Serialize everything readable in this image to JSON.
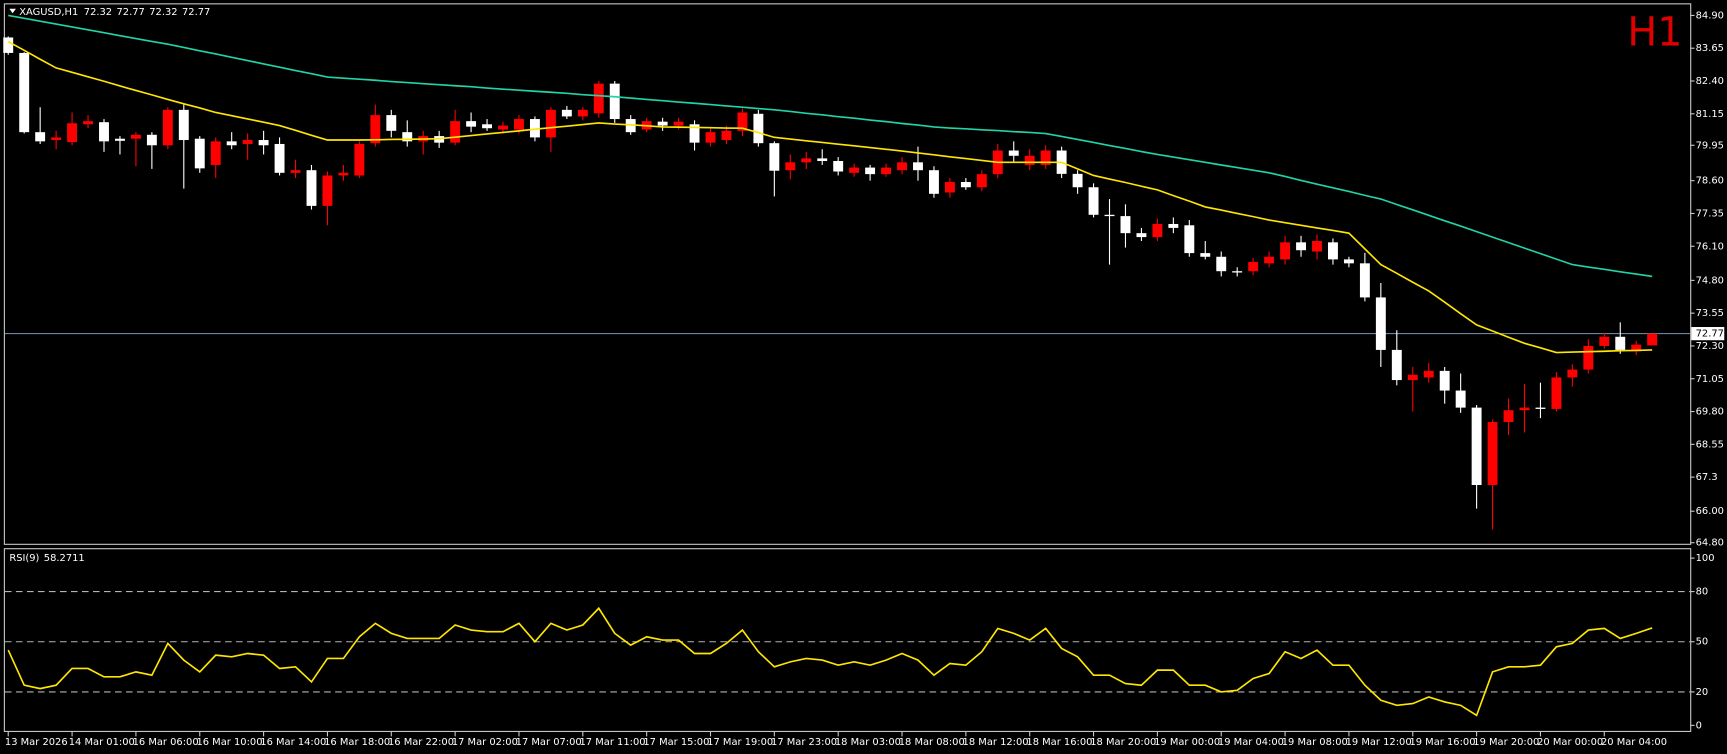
{
  "chart_data": [
    {
      "type": "candlestick",
      "title": "XAGUSD,H1",
      "readout": [
        72.32,
        72.77,
        72.32,
        72.77
      ],
      "annotation": "H1",
      "annotation_color": "#e00000",
      "current_price": 72.77,
      "up_color": "#ff0000",
      "down_color": "#ffffff",
      "categories": [
        "13 Mar 2026",
        null,
        null,
        null,
        "14 Mar 01:00",
        null,
        null,
        null,
        "16 Mar 06:00",
        null,
        null,
        null,
        "16 Mar 10:00",
        null,
        null,
        null,
        "16 Mar 14:00",
        null,
        null,
        null,
        "16 Mar 18:00",
        null,
        null,
        null,
        "16 Mar 22:00",
        null,
        null,
        null,
        "17 Mar 02:00",
        null,
        null,
        null,
        "17 Mar 07:00",
        null,
        null,
        null,
        "17 Mar 11:00",
        null,
        null,
        null,
        "17 Mar 15:00",
        null,
        null,
        null,
        "17 Mar 19:00",
        null,
        null,
        null,
        "17 Mar 23:00",
        null,
        null,
        null,
        "18 Mar 03:00",
        null,
        null,
        null,
        "18 Mar 08:00",
        null,
        null,
        null,
        "18 Mar 12:00",
        null,
        null,
        null,
        "18 Mar 16:00",
        null,
        null,
        null,
        "18 Mar 20:00",
        null,
        null,
        null,
        "19 Mar 00:00",
        null,
        null,
        null,
        "19 Mar 04:00",
        null,
        null,
        null,
        "19 Mar 08:00",
        null,
        null,
        null,
        "19 Mar 12:00",
        null,
        null,
        null,
        "19 Mar 16:00",
        null,
        null,
        null,
        "19 Mar 20:00",
        null,
        null,
        null,
        "20 Mar 00:00",
        null,
        null,
        null,
        "20 Mar 04:00",
        null,
        null,
        null
      ],
      "open": [
        84.06,
        83.47,
        80.45,
        80.15,
        80.07,
        80.75,
        80.83,
        80.2,
        80.2,
        80.35,
        79.95,
        81.3,
        80.2,
        79.2,
        80.1,
        80.0,
        80.15,
        80.0,
        78.9,
        79.0,
        77.64,
        78.8,
        78.8,
        80.03,
        81.1,
        80.45,
        80.1,
        80.3,
        80.05,
        80.87,
        80.75,
        80.55,
        80.55,
        80.95,
        80.25,
        81.3,
        81.05,
        81.17,
        82.3,
        80.95,
        80.55,
        80.85,
        80.7,
        80.75,
        80.05,
        80.15,
        80.5,
        81.15,
        80.03,
        79.0,
        79.3,
        79.45,
        79.35,
        78.9,
        79.1,
        78.85,
        79.0,
        79.3,
        79.0,
        78.15,
        78.55,
        78.35,
        78.85,
        79.75,
        79.2,
        79.2,
        79.75,
        78.86,
        78.35,
        77.3,
        77.25,
        76.6,
        76.45,
        76.95,
        76.9,
        75.84,
        75.7,
        75.15,
        75.15,
        75.45,
        75.6,
        76.25,
        75.9,
        76.25,
        75.6,
        75.45,
        74.15,
        72.15,
        71.0,
        71.1,
        71.35,
        70.6,
        69.95,
        67.0,
        69.4,
        69.85,
        69.95,
        69.9,
        71.1,
        71.4,
        72.3,
        72.65,
        72.1,
        72.32
      ],
      "high": [
        84.1,
        83.5,
        81.4,
        80.5,
        81.2,
        81.1,
        80.95,
        80.3,
        80.45,
        80.45,
        81.4,
        81.5,
        80.3,
        80.25,
        80.45,
        80.4,
        80.5,
        80.25,
        79.4,
        79.2,
        78.95,
        79.2,
        80.1,
        81.5,
        81.3,
        80.9,
        80.5,
        80.5,
        81.3,
        81.2,
        80.95,
        80.85,
        81.1,
        81.05,
        81.4,
        81.45,
        81.4,
        82.4,
        82.4,
        81.1,
        81.0,
        81.0,
        81.0,
        80.9,
        80.6,
        80.7,
        81.35,
        81.3,
        80.1,
        79.6,
        79.7,
        79.8,
        79.5,
        79.25,
        79.2,
        79.25,
        79.5,
        79.9,
        79.15,
        78.7,
        78.7,
        79.0,
        80.0,
        80.1,
        79.8,
        79.95,
        79.9,
        79.0,
        78.5,
        77.9,
        77.7,
        76.8,
        77.15,
        77.2,
        77.1,
        76.3,
        75.9,
        75.3,
        75.65,
        75.9,
        76.5,
        76.5,
        76.55,
        76.4,
        75.7,
        75.85,
        74.7,
        72.9,
        71.5,
        71.65,
        71.5,
        71.25,
        70.05,
        69.5,
        70.3,
        70.85,
        70.9,
        71.3,
        71.6,
        72.55,
        72.8,
        73.2,
        72.5,
        72.77
      ],
      "low": [
        83.4,
        80.4,
        80.0,
        79.8,
        79.95,
        80.6,
        79.7,
        79.6,
        79.15,
        79.05,
        79.8,
        78.3,
        78.9,
        78.7,
        79.8,
        79.4,
        79.6,
        78.8,
        78.7,
        77.5,
        76.9,
        78.6,
        78.7,
        79.9,
        80.25,
        79.9,
        79.6,
        79.85,
        79.95,
        80.45,
        80.5,
        80.4,
        80.4,
        80.1,
        79.7,
        80.95,
        80.9,
        81.0,
        80.8,
        80.35,
        80.45,
        80.5,
        80.55,
        79.75,
        79.9,
        80.0,
        80.3,
        79.9,
        78.0,
        78.65,
        79.05,
        79.2,
        78.8,
        78.75,
        78.6,
        78.75,
        78.85,
        78.6,
        77.95,
        77.95,
        78.25,
        78.2,
        78.7,
        79.3,
        79.0,
        79.05,
        78.7,
        78.1,
        77.2,
        75.4,
        76.05,
        76.3,
        76.3,
        76.6,
        75.7,
        75.6,
        74.95,
        74.95,
        75.0,
        75.3,
        75.4,
        75.7,
        75.6,
        75.4,
        75.3,
        74.0,
        71.5,
        70.8,
        69.8,
        70.9,
        70.1,
        69.75,
        66.1,
        65.3,
        68.9,
        69.0,
        69.55,
        69.8,
        70.75,
        71.25,
        72.2,
        72.0,
        71.95,
        72.32
      ],
      "close": [
        83.47,
        80.45,
        80.1,
        80.25,
        80.79,
        80.87,
        80.1,
        80.12,
        80.35,
        79.95,
        81.3,
        80.15,
        79.07,
        80.1,
        79.95,
        80.15,
        79.95,
        78.9,
        79.0,
        77.64,
        78.8,
        78.9,
        80.0,
        81.1,
        80.5,
        80.1,
        80.3,
        80.05,
        80.87,
        80.66,
        80.6,
        80.7,
        80.95,
        80.25,
        81.3,
        81.05,
        81.3,
        82.3,
        80.95,
        80.45,
        80.87,
        80.7,
        80.85,
        80.05,
        80.45,
        80.5,
        81.2,
        80.03,
        78.98,
        79.3,
        79.45,
        79.35,
        78.95,
        79.1,
        78.85,
        79.1,
        79.3,
        79.0,
        78.1,
        78.55,
        78.35,
        78.85,
        79.75,
        79.55,
        79.55,
        79.75,
        78.86,
        78.35,
        77.3,
        77.25,
        76.6,
        76.45,
        76.95,
        76.8,
        75.84,
        75.7,
        75.15,
        75.1,
        75.5,
        75.7,
        76.25,
        75.95,
        76.3,
        75.6,
        75.45,
        74.15,
        72.15,
        71.0,
        71.2,
        71.35,
        70.6,
        69.95,
        67.0,
        69.4,
        69.85,
        69.95,
        69.9,
        71.1,
        71.4,
        72.3,
        72.65,
        72.15,
        72.35,
        72.77
      ],
      "series": [
        {
          "color": "#ffe600",
          "values": [
            83.9,
            83.57,
            83.23,
            82.9,
            82.73,
            82.56,
            82.39,
            82.21,
            82.04,
            81.87,
            81.7,
            81.53,
            81.37,
            81.2,
            81.08,
            80.95,
            80.83,
            80.7,
            80.52,
            80.33,
            80.15,
            80.15,
            80.15,
            80.16,
            80.17,
            80.18,
            80.19,
            80.2,
            80.26,
            80.32,
            80.38,
            80.44,
            80.5,
            80.56,
            80.62,
            80.68,
            80.74,
            80.8,
            80.76,
            80.73,
            80.69,
            80.65,
            80.64,
            80.63,
            80.62,
            80.61,
            80.6,
            80.43,
            80.25,
            80.19,
            80.12,
            80.06,
            79.99,
            79.93,
            79.86,
            79.8,
            79.73,
            79.66,
            79.59,
            79.51,
            79.44,
            79.37,
            79.3,
            79.3,
            79.3,
            79.3,
            79.3,
            79.05,
            78.8,
            78.66,
            78.53,
            78.39,
            78.25,
            78.03,
            77.82,
            77.6,
            77.48,
            77.35,
            77.23,
            77.1,
            77.0,
            76.9,
            76.8,
            76.7,
            76.6,
            76.0,
            75.4,
            75.07,
            74.73,
            74.4,
            73.97,
            73.53,
            73.1,
            72.87,
            72.63,
            72.4,
            72.23,
            72.05,
            72.07,
            72.08,
            72.1,
            72.12,
            72.13,
            72.15
          ]
        },
        {
          "color": "#22d3a5",
          "values": [
            84.9,
            84.79,
            84.68,
            84.57,
            84.46,
            84.35,
            84.24,
            84.13,
            84.02,
            83.91,
            83.8,
            83.68,
            83.55,
            83.43,
            83.3,
            83.18,
            83.05,
            82.93,
            82.8,
            82.68,
            82.55,
            82.51,
            82.47,
            82.43,
            82.38,
            82.34,
            82.3,
            82.26,
            82.22,
            82.18,
            82.13,
            82.09,
            82.05,
            82.01,
            81.97,
            81.93,
            81.88,
            81.84,
            81.8,
            81.75,
            81.7,
            81.65,
            81.6,
            81.55,
            81.5,
            81.45,
            81.4,
            81.35,
            81.3,
            81.24,
            81.17,
            81.11,
            81.04,
            80.98,
            80.91,
            80.85,
            80.78,
            80.72,
            80.65,
            80.61,
            80.58,
            80.54,
            80.51,
            80.47,
            80.44,
            80.4,
            80.29,
            80.17,
            80.06,
            79.94,
            79.83,
            79.71,
            79.6,
            79.5,
            79.4,
            79.3,
            79.2,
            79.1,
            79.0,
            78.9,
            78.76,
            78.61,
            78.47,
            78.33,
            78.19,
            78.04,
            77.9,
            77.69,
            77.49,
            77.28,
            77.07,
            76.87,
            76.66,
            76.45,
            76.24,
            76.03,
            75.82,
            75.61,
            75.4,
            75.31,
            75.22,
            75.13,
            75.04,
            74.95
          ]
        }
      ],
      "ylim": [
        64.76,
        85.32
      ],
      "yticks": [
        {
          "value": 84.9,
          "label": "84.90"
        },
        83.65,
        {
          "value": 82.4,
          "label": "82.40"
        },
        81.15,
        79.95,
        {
          "value": 78.6,
          "label": "78.60"
        },
        77.35,
        {
          "value": 76.1,
          "label": "76.10"
        },
        {
          "value": 74.8,
          "label": "74.80"
        },
        73.55,
        {
          "value": 72.3,
          "label": "72.30"
        },
        71.05,
        {
          "value": 69.8,
          "label": "69.80"
        },
        68.55,
        67.3,
        {
          "value": 66.0,
          "label": "66.00"
        },
        {
          "value": 64.8,
          "label": "64.80"
        }
      ]
    },
    {
      "type": "line",
      "title": "RSI(9)",
      "readout": 58.2711,
      "color": "#ffe600",
      "values": [
        45,
        24,
        22,
        24,
        34,
        34,
        29,
        29,
        32,
        30,
        49,
        39,
        32,
        42,
        41,
        43,
        42,
        34,
        35,
        26,
        40,
        40,
        53,
        61,
        55,
        52,
        52,
        52,
        60,
        57,
        56,
        56,
        61,
        50,
        61,
        57,
        60,
        70,
        55,
        48,
        53,
        51,
        51,
        43,
        43,
        49,
        57,
        44,
        35,
        38,
        40,
        39,
        36,
        38,
        36,
        39,
        43,
        39,
        30,
        37,
        36,
        44,
        58,
        55,
        51,
        58,
        46,
        41,
        30,
        30,
        25,
        24,
        33,
        33,
        24,
        24,
        20,
        21,
        28,
        31,
        44,
        40,
        45,
        36,
        36,
        24,
        15,
        12,
        13,
        17,
        14,
        12,
        6,
        32,
        35,
        35,
        36,
        47,
        49,
        57,
        58,
        52,
        55,
        58.27
      ],
      "levels": [
        20,
        50,
        80
      ],
      "ylim": [
        -3.3,
        105.3
      ],
      "yticks": [
        0,
        20,
        50,
        80,
        100
      ]
    }
  ]
}
